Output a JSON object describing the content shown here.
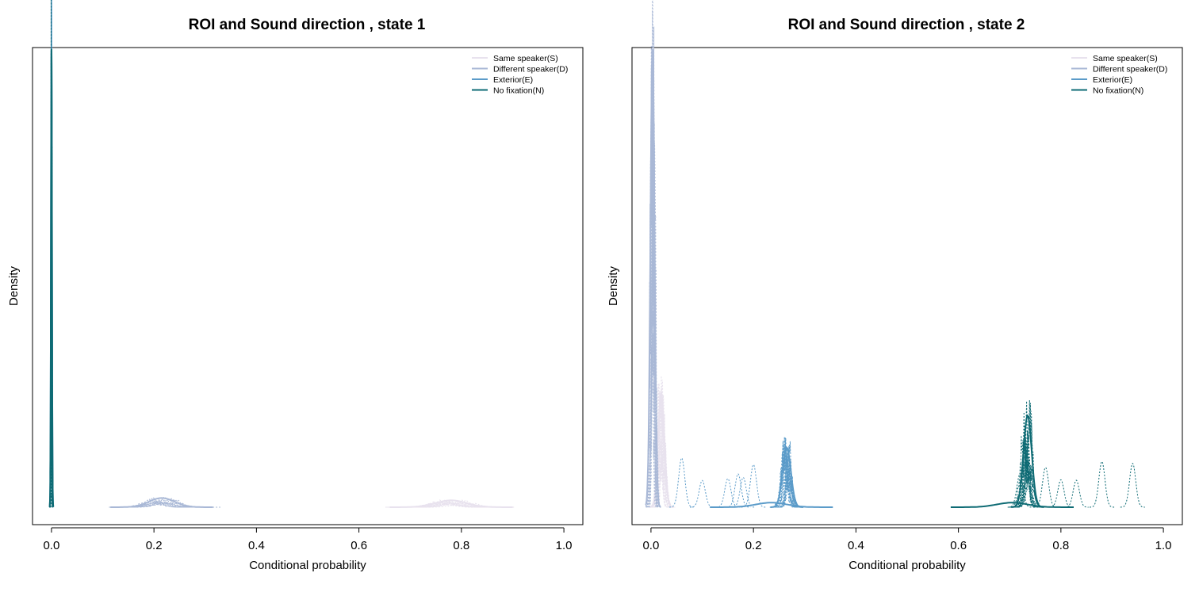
{
  "chart_data": [
    {
      "type": "area",
      "title": "ROI and Sound direction , state 1",
      "xlabel": "Conditional probability",
      "ylabel": "Density",
      "xlim": [
        0,
        1
      ],
      "x_ticks": [
        "0.0",
        "0.2",
        "0.4",
        "0.6",
        "0.8",
        "1.0"
      ],
      "y_ticks": [],
      "legend_position": "top-right",
      "grid": false,
      "series": [
        {
          "name": "Same speaker(S)",
          "color": "#e8e2ee",
          "posterior_center": 0.78,
          "posterior_spread": 0.03,
          "peak_density_fraction": 0.015
        },
        {
          "name": "Different speaker(D)",
          "color": "#a9b8d6",
          "posterior_center": 0.215,
          "posterior_spread": 0.025,
          "peak_density_fraction": 0.02
        },
        {
          "name": "Exterior(E)",
          "color": "#5b9bc9",
          "posterior_center": 0.0,
          "posterior_spread": 0.001,
          "peak_density_fraction": 1.0
        },
        {
          "name": "No fixation(N)",
          "color": "#0e6b74",
          "posterior_center": 0.0,
          "posterior_spread": 0.001,
          "peak_density_fraction": 1.0
        }
      ]
    },
    {
      "type": "area",
      "title": "ROI and Sound direction , state 2",
      "xlabel": "Conditional probability",
      "ylabel": "Density",
      "xlim": [
        0,
        1
      ],
      "x_ticks": [
        "0.0",
        "0.2",
        "0.4",
        "0.6",
        "0.8",
        "1.0"
      ],
      "y_ticks": [],
      "legend_position": "top-right",
      "grid": false,
      "series": [
        {
          "name": "Same speaker(S)",
          "color": "#e8e2ee",
          "posterior_center": 0.02,
          "posterior_spread": 0.006,
          "peak_density_fraction": 0.25
        },
        {
          "name": "Different speaker(D)",
          "color": "#a9b8d6",
          "posterior_center": 0.003,
          "posterior_spread": 0.004,
          "peak_density_fraction": 1.0
        },
        {
          "name": "Exterior(E)",
          "color": "#5b9bc9",
          "posterior_center": 0.265,
          "posterior_spread": 0.008,
          "peak_density_fraction": 0.13,
          "individual_modes": [
            0.06,
            0.1,
            0.15,
            0.17,
            0.18,
            0.2,
            0.26,
            0.27
          ]
        },
        {
          "name": "No fixation(N)",
          "color": "#0e6b74",
          "posterior_center": 0.735,
          "posterior_spread": 0.008,
          "peak_density_fraction": 0.2,
          "individual_modes": [
            0.72,
            0.74,
            0.77,
            0.8,
            0.83,
            0.88,
            0.94
          ]
        }
      ]
    }
  ]
}
